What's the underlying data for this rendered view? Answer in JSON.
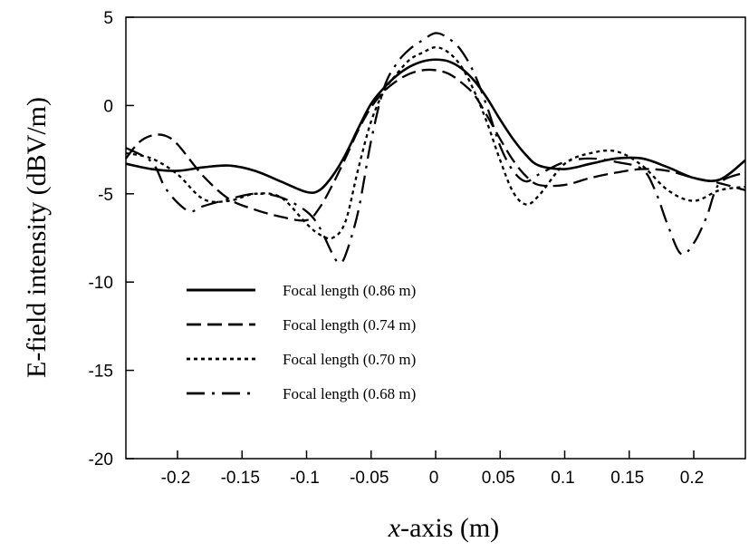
{
  "chart_data": {
    "type": "line",
    "title": "",
    "xlabel_italic": "x",
    "xlabel_rest": "-axis (m)",
    "ylabel": "E-field intensity  (dBV/m)",
    "xlim": [
      -0.24,
      0.24
    ],
    "ylim": [
      -20,
      5
    ],
    "xticks": [
      -0.2,
      -0.15,
      -0.1,
      -0.05,
      0,
      0.05,
      0.1,
      0.15,
      0.2
    ],
    "xtick_labels": [
      "-0.2",
      "-0.15",
      "-0.1",
      "-0.05",
      "0",
      "0.05",
      "0.1",
      "0.15",
      "0.2"
    ],
    "yticks": [
      5,
      0,
      -5,
      -10,
      -15,
      -20
    ],
    "ytick_labels": [
      "5",
      "0",
      "-5",
      "-10",
      "-15",
      "-20"
    ],
    "grid": false,
    "legend_position": "lower-left",
    "series": [
      {
        "name": "Focal length (0.86 m)",
        "style": "solid",
        "x": [
          -0.24,
          -0.22,
          -0.2,
          -0.18,
          -0.16,
          -0.14,
          -0.12,
          -0.1,
          -0.09,
          -0.08,
          -0.07,
          -0.06,
          -0.05,
          -0.04,
          -0.03,
          -0.02,
          -0.01,
          0,
          0.01,
          0.02,
          0.03,
          0.04,
          0.05,
          0.06,
          0.07,
          0.08,
          0.1,
          0.12,
          0.14,
          0.16,
          0.18,
          0.2,
          0.22,
          0.24
        ],
        "y": [
          -3.3,
          -3.6,
          -3.7,
          -3.5,
          -3.4,
          -3.7,
          -4.3,
          -4.9,
          -4.8,
          -4.0,
          -2.8,
          -1.3,
          0.1,
          1.0,
          1.7,
          2.2,
          2.5,
          2.6,
          2.5,
          2.1,
          1.4,
          0.4,
          -0.8,
          -1.9,
          -2.8,
          -3.4,
          -3.6,
          -3.3,
          -3.0,
          -3.0,
          -3.5,
          -4.1,
          -4.2,
          -3.1
        ]
      },
      {
        "name": "Focal length (0.74 m)",
        "style": "dashed",
        "x": [
          -0.24,
          -0.23,
          -0.22,
          -0.21,
          -0.2,
          -0.18,
          -0.16,
          -0.14,
          -0.12,
          -0.1,
          -0.09,
          -0.08,
          -0.07,
          -0.06,
          -0.05,
          -0.04,
          -0.03,
          -0.02,
          -0.01,
          0,
          0.01,
          0.02,
          0.03,
          0.04,
          0.05,
          0.06,
          0.07,
          0.08,
          0.1,
          0.12,
          0.14,
          0.16,
          0.18,
          0.2,
          0.22,
          0.24
        ],
        "y": [
          -3.0,
          -2.1,
          -1.7,
          -1.7,
          -2.2,
          -4.0,
          -5.3,
          -5.9,
          -6.3,
          -6.5,
          -5.8,
          -4.5,
          -3.0,
          -1.4,
          -0.1,
          0.8,
          1.4,
          1.8,
          2.0,
          2.0,
          1.8,
          1.3,
          0.6,
          -0.6,
          -1.9,
          -3.1,
          -4.0,
          -4.5,
          -4.5,
          -4.1,
          -3.8,
          -3.6,
          -3.7,
          -4.1,
          -4.4,
          -4.8
        ]
      },
      {
        "name": "Focal length (0.70 m)",
        "style": "dotted",
        "x": [
          -0.24,
          -0.22,
          -0.2,
          -0.18,
          -0.16,
          -0.14,
          -0.12,
          -0.1,
          -0.09,
          -0.08,
          -0.07,
          -0.06,
          -0.05,
          -0.04,
          -0.03,
          -0.02,
          -0.01,
          0,
          0.01,
          0.02,
          0.03,
          0.04,
          0.05,
          0.06,
          0.07,
          0.08,
          0.1,
          0.12,
          0.14,
          0.16,
          0.18,
          0.2,
          0.22,
          0.24
        ],
        "y": [
          -2.7,
          -3.0,
          -3.9,
          -5.3,
          -5.4,
          -5.0,
          -5.2,
          -6.7,
          -7.3,
          -7.5,
          -6.6,
          -3.6,
          -0.9,
          0.8,
          1.8,
          2.6,
          3.0,
          3.3,
          3.0,
          2.2,
          0.8,
          -1.0,
          -3.1,
          -4.9,
          -5.6,
          -5.1,
          -3.3,
          -2.7,
          -2.6,
          -3.4,
          -4.8,
          -5.4,
          -4.8,
          -4.6
        ]
      },
      {
        "name": "Focal length (0.68 m)",
        "style": "dashdot",
        "x": [
          -0.24,
          -0.22,
          -0.21,
          -0.2,
          -0.19,
          -0.18,
          -0.16,
          -0.14,
          -0.12,
          -0.1,
          -0.09,
          -0.08,
          -0.075,
          -0.07,
          -0.06,
          -0.05,
          -0.04,
          -0.03,
          -0.02,
          -0.01,
          0,
          0.01,
          0.02,
          0.03,
          0.04,
          0.05,
          0.06,
          0.07,
          0.08,
          0.1,
          0.12,
          0.14,
          0.16,
          0.17,
          0.18,
          0.19,
          0.2,
          0.21,
          0.22,
          0.24
        ],
        "y": [
          -2.4,
          -3.2,
          -4.6,
          -5.5,
          -6.0,
          -5.7,
          -5.3,
          -5.0,
          -5.2,
          -6.0,
          -6.9,
          -8.4,
          -8.9,
          -8.5,
          -6.0,
          -2.0,
          1.0,
          2.4,
          3.2,
          3.7,
          4.1,
          3.8,
          3.1,
          1.8,
          -0.1,
          -2.3,
          -3.7,
          -4.3,
          -3.9,
          -3.2,
          -3.0,
          -3.2,
          -3.6,
          -4.8,
          -6.8,
          -8.4,
          -7.8,
          -6.3,
          -4.4,
          -3.8
        ]
      }
    ]
  }
}
